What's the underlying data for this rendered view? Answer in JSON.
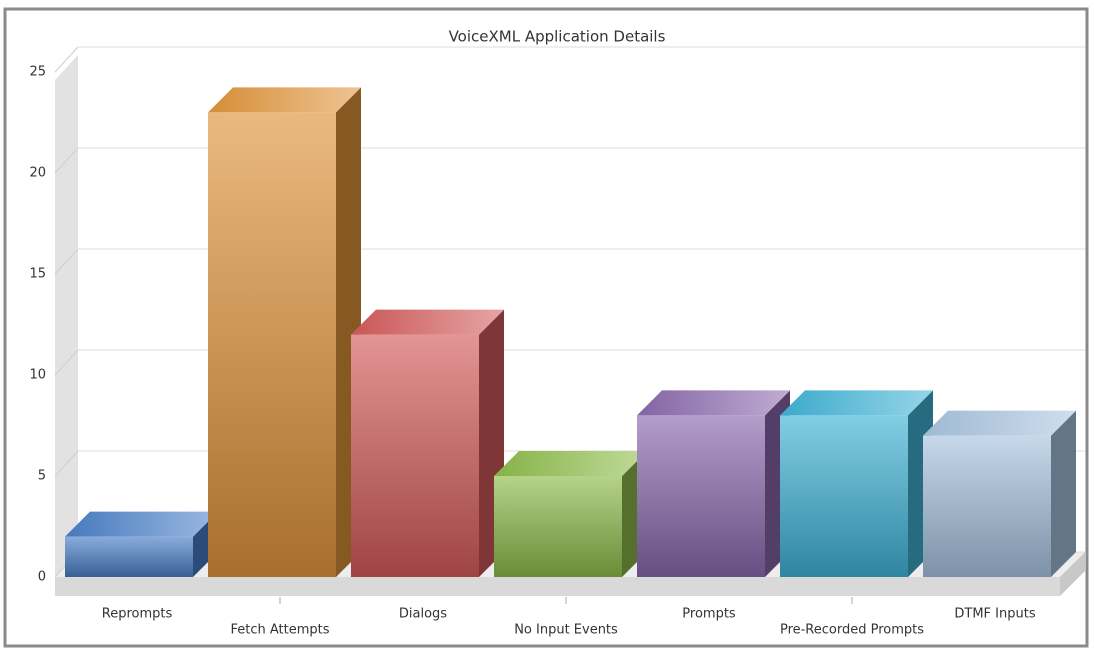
{
  "chart_data": {
    "type": "bar3d",
    "title": "VoiceXML Application Details",
    "categories": [
      "Reprompts",
      "Fetch Attempts",
      "Dialogs",
      "No Input Events",
      "Prompts",
      "Pre-Recorded Prompts",
      "DTMF Inputs"
    ],
    "values": [
      2,
      23,
      12,
      5,
      8,
      8,
      7
    ],
    "colors": [
      "#4a7fc8",
      "#e0943a",
      "#d45a5a",
      "#8dbb4a",
      "#8a68ad",
      "#3fb3d6",
      "#a7c3de"
    ],
    "ylim": [
      0,
      25
    ],
    "yticks": [
      0,
      5,
      10,
      15,
      20,
      25
    ],
    "grid": true
  }
}
